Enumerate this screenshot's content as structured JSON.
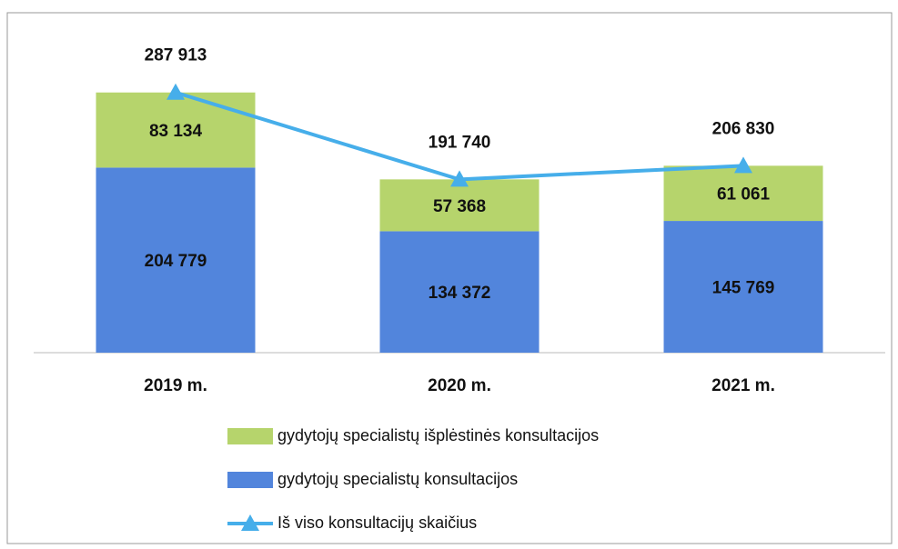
{
  "chart_data": {
    "type": "bar",
    "stacked": true,
    "categories": [
      "2019 m.",
      "2020 m.",
      "2021 m."
    ],
    "ylim": [
      0,
      350000
    ],
    "series": [
      {
        "name": "gydytojų specialistų konsultacijos",
        "color": "#5285dc",
        "values": [
          204779,
          134372,
          145769
        ],
        "value_labels": [
          "204 779",
          "134 372",
          "145 769"
        ]
      },
      {
        "name": "gydytojų specialistų išplėstinės konsultacijos",
        "color": "#b6d46c",
        "values": [
          83134,
          57368,
          61061
        ],
        "value_labels": [
          "83 134",
          "57 368",
          "61 061"
        ]
      },
      {
        "name": "Iš viso konsultacijų skaičius",
        "type": "line",
        "color": "#46aeea",
        "values": [
          287913,
          191740,
          206830
        ],
        "value_labels": [
          "287 913",
          "191 740",
          "206 830"
        ]
      }
    ]
  }
}
